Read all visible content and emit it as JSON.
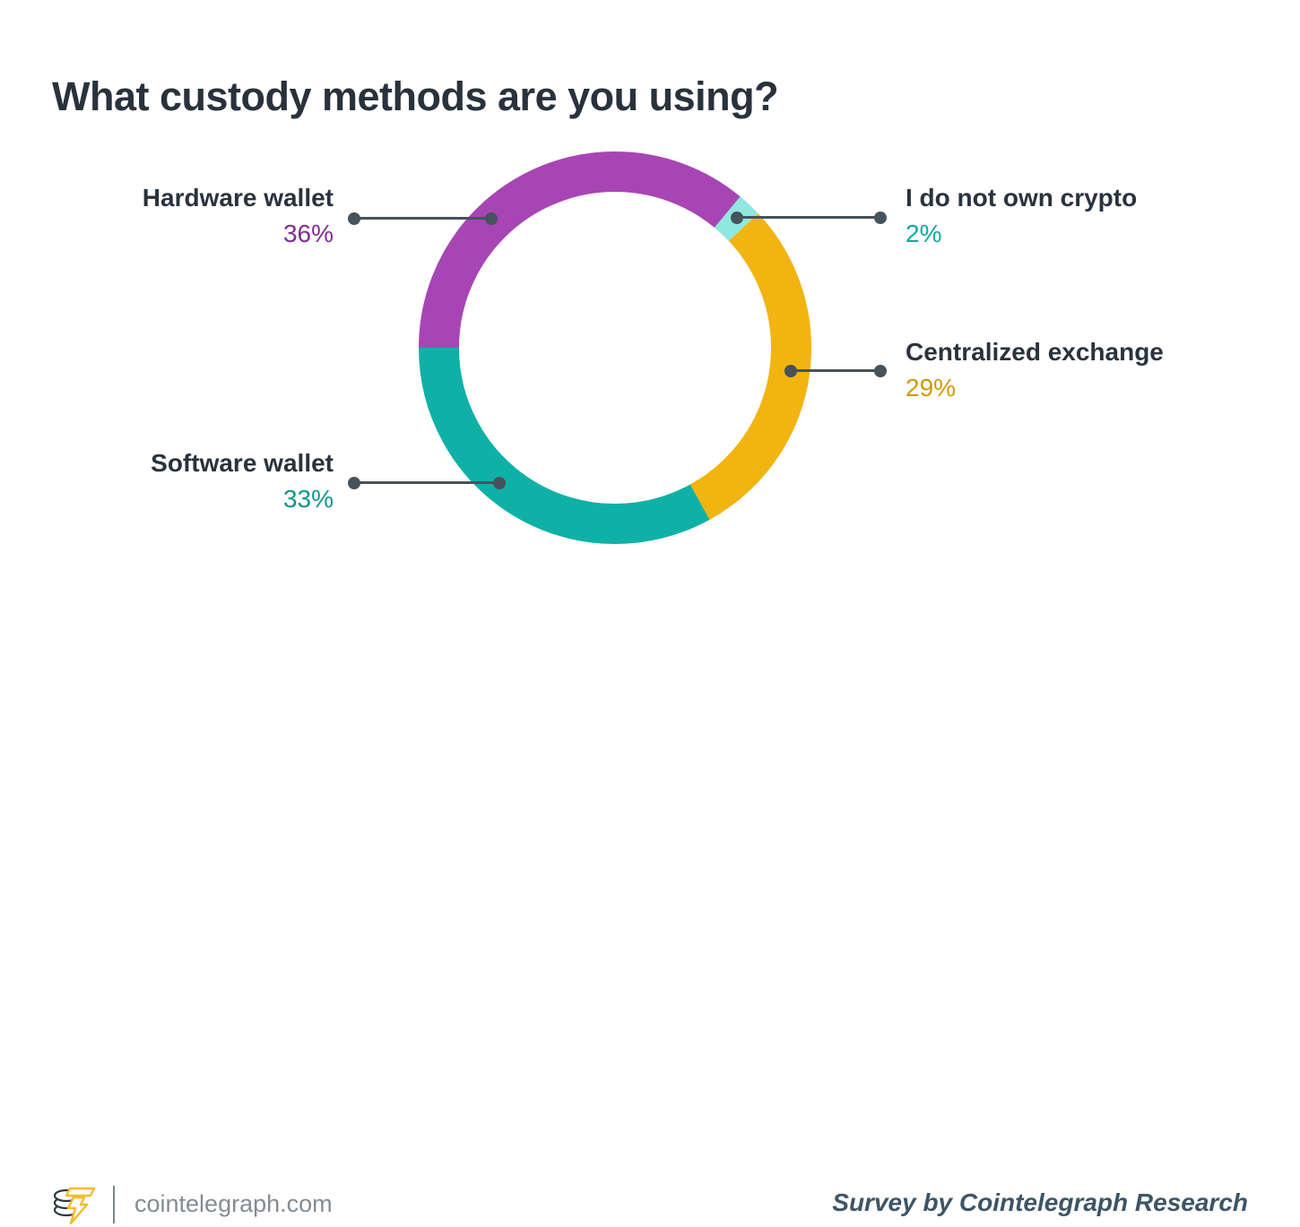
{
  "title": "What custody methods are you using?",
  "chart_data": {
    "type": "pie",
    "subtype": "donut",
    "title": "What custody methods are you using?",
    "categories": [
      "Hardware wallet",
      "I do not own crypto",
      "Centralized exchange",
      "Software wallet"
    ],
    "values": [
      36,
      2,
      29,
      33
    ],
    "unit": "%",
    "start_angle_clockwise_from_top_deg": 270,
    "direction": "clockwise",
    "legend_position": "callout-labels",
    "grid": false,
    "segments": [
      {
        "label": "Hardware wallet",
        "value": 36,
        "pct_text": "36%",
        "color": "#a845b5",
        "value_color": "#822c93"
      },
      {
        "label": "I do not own crypto",
        "value": 2,
        "pct_text": "2%",
        "color": "#8fe7e0",
        "value_color": "#11a99e"
      },
      {
        "label": "Centralized exchange",
        "value": 29,
        "pct_text": "29%",
        "color": "#f2b411",
        "value_color": "#cf9a06"
      },
      {
        "label": "Software wallet",
        "value": 33,
        "pct_text": "33%",
        "color": "#0fb1a7",
        "value_color": "#0b968c"
      }
    ]
  },
  "footer": {
    "site": "cointelegraph.com",
    "credit": "Survey by Cointelegraph Research",
    "logo": "cointelegraph-coin-lightning-logo"
  },
  "colors": {
    "background": "#ffffff",
    "title_text": "#29323c",
    "label_text": "#2a333d",
    "connector": "#46525c",
    "site_text": "#848c94",
    "credit_text": "#3e5565",
    "logo_coin_outline": "#2e3a44",
    "logo_bolt": "#f5bb2b"
  }
}
